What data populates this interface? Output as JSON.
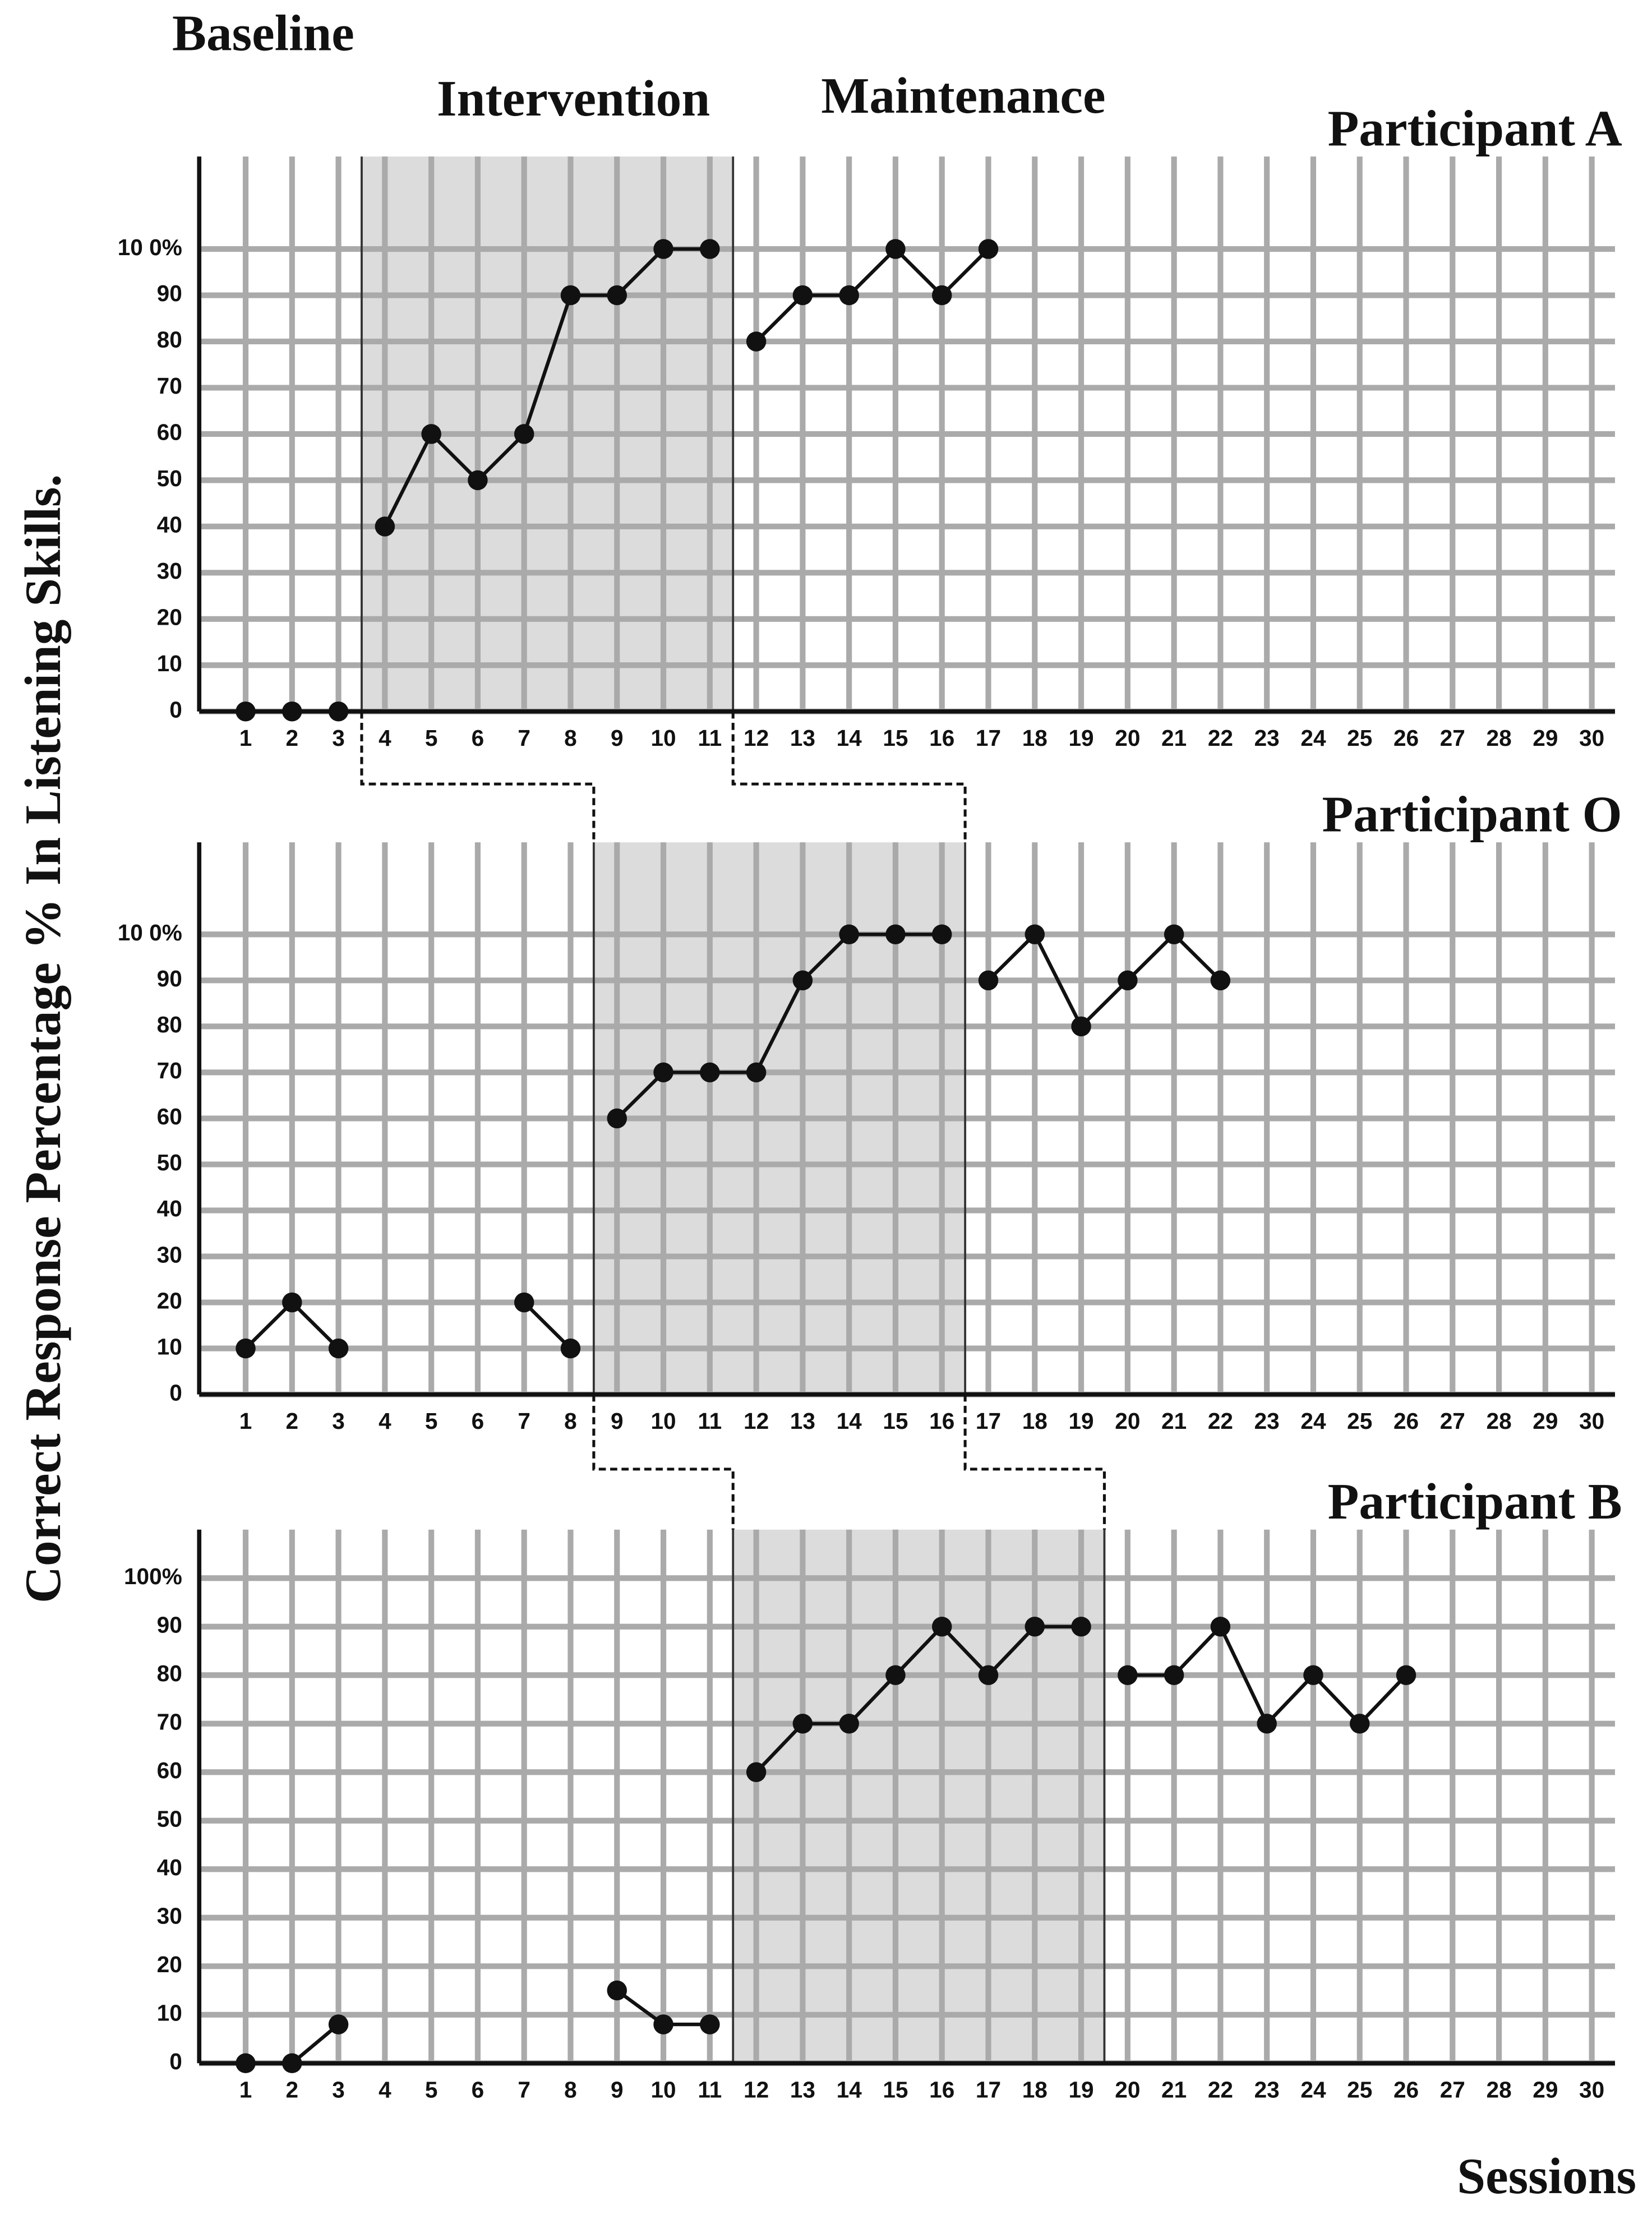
{
  "chart_data": [
    {
      "type": "line",
      "title": "Participant A",
      "phase_labels": [
        "Baseline",
        "Intervention",
        "Maintenance"
      ],
      "ylabel": "Correct Response Percentage % In Listening Skills.",
      "x": [
        1,
        2,
        3,
        4,
        5,
        6,
        7,
        8,
        9,
        10,
        11,
        12,
        13,
        14,
        15,
        16,
        17,
        18,
        19,
        20,
        21,
        22,
        23,
        24,
        25,
        26,
        27,
        28,
        29,
        30
      ],
      "series": [
        {
          "color": "#111111",
          "values": [
            0,
            0,
            0,
            40,
            60,
            50,
            60,
            90,
            90,
            100,
            100,
            80,
            90,
            90,
            100,
            90,
            100,
            null,
            null,
            null,
            null,
            null,
            null,
            null,
            null,
            null,
            null,
            null,
            null,
            null
          ]
        }
      ],
      "phase_changes": [
        3.5,
        11.5
      ],
      "xlim": [
        0,
        30.5
      ],
      "ylim": [
        0,
        120
      ],
      "xticks": [
        1,
        2,
        3,
        4,
        5,
        6,
        7,
        8,
        9,
        10,
        11,
        12,
        13,
        14,
        15,
        16,
        17,
        18,
        19,
        20,
        21,
        22,
        23,
        24,
        25,
        26,
        27,
        28,
        29,
        30
      ],
      "yticks": [
        0,
        10,
        20,
        30,
        40,
        50,
        60,
        70,
        80,
        90,
        {
          "value": 100,
          "label": "10 0%"
        }
      ],
      "grid": true
    },
    {
      "type": "line",
      "title": "Participant O",
      "x": [
        1,
        2,
        3,
        4,
        5,
        6,
        7,
        8,
        9,
        10,
        11,
        12,
        13,
        14,
        15,
        16,
        17,
        18,
        19,
        20,
        21,
        22,
        23,
        24,
        25,
        26,
        27,
        28,
        29,
        30
      ],
      "series": [
        {
          "color": "#111111",
          "values": [
            10,
            20,
            10,
            null,
            null,
            null,
            20,
            10,
            60,
            70,
            70,
            70,
            90,
            100,
            100,
            100,
            90,
            100,
            80,
            90,
            100,
            90,
            null,
            null,
            null,
            null,
            null,
            null,
            null,
            null
          ]
        }
      ],
      "phase_changes": [
        8.5,
        16.5
      ],
      "xlim": [
        0,
        30.5
      ],
      "ylim": [
        0,
        120
      ],
      "xticks": [
        1,
        2,
        3,
        4,
        5,
        6,
        7,
        8,
        9,
        10,
        11,
        12,
        13,
        14,
        15,
        16,
        17,
        18,
        19,
        20,
        21,
        22,
        23,
        24,
        25,
        26,
        27,
        28,
        29,
        30
      ],
      "yticks": [
        0,
        10,
        20,
        30,
        40,
        50,
        60,
        70,
        80,
        90,
        {
          "value": 100,
          "label": "10 0%"
        }
      ],
      "grid": true
    },
    {
      "type": "line",
      "title": "Participant B",
      "xlabel": "Sessions",
      "x": [
        1,
        2,
        3,
        4,
        5,
        6,
        7,
        8,
        9,
        10,
        11,
        12,
        13,
        14,
        15,
        16,
        17,
        18,
        19,
        20,
        21,
        22,
        23,
        24,
        25,
        26,
        27,
        28,
        29,
        30
      ],
      "series": [
        {
          "color": "#111111",
          "values": [
            0,
            0,
            8,
            null,
            null,
            null,
            null,
            null,
            15,
            8,
            8,
            60,
            70,
            70,
            80,
            90,
            80,
            90,
            90,
            80,
            80,
            90,
            70,
            80,
            70,
            80,
            null,
            null,
            null,
            null
          ]
        }
      ],
      "phase_changes": [
        11.5,
        19.5
      ],
      "xlim": [
        0,
        30.5
      ],
      "ylim": [
        0,
        110
      ],
      "xticks": [
        1,
        2,
        3,
        4,
        5,
        6,
        7,
        8,
        9,
        10,
        11,
        12,
        13,
        14,
        15,
        16,
        17,
        18,
        19,
        20,
        21,
        22,
        23,
        24,
        25,
        26,
        27,
        28,
        29,
        30
      ],
      "yticks": [
        0,
        10,
        20,
        30,
        40,
        50,
        60,
        70,
        80,
        90,
        {
          "value": 100,
          "label": "100%"
        }
      ],
      "grid": true
    }
  ]
}
